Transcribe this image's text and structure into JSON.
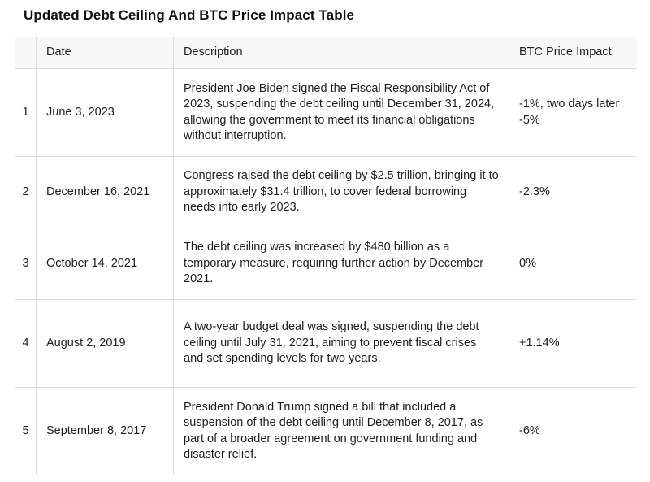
{
  "title": "Updated Debt Ceiling And BTC Price Impact Table",
  "table": {
    "headers": [
      "",
      "Date",
      "Description",
      "BTC Price Impact"
    ],
    "rows": [
      {
        "num": "1",
        "date": "June 3, 2023",
        "description": "President Joe Biden signed the Fiscal Responsibility Act of 2023, suspending the debt ceiling until December 31, 2024, allowing the government to meet its financial obligations without interruption.",
        "impact": [
          "-1%, two days later",
          "-5%"
        ]
      },
      {
        "num": "2",
        "date": "December 16, 2021",
        "description": "Congress raised the debt ceiling by $2.5 trillion, bringing it to approximately $31.4 trillion, to cover federal borrowing needs into early 2023.",
        "impact": [
          "-2.3%"
        ]
      },
      {
        "num": "3",
        "date": "October 14, 2021",
        "description": "The debt ceiling was increased by $480 billion as a temporary measure, requiring further action by December 2021.",
        "impact": [
          "0%"
        ]
      },
      {
        "num": "4",
        "date": "August 2, 2019",
        "description": "A two-year budget deal was signed, suspending the debt ceiling until July 31, 2021, aiming to prevent fiscal crises and set spending levels for two years.",
        "impact": [
          "+1.14%"
        ]
      },
      {
        "num": "5",
        "date": "September 8, 2017",
        "description": "President Donald Trump signed a bill that included a suspension of the debt ceiling until December 8, 2017, as part of a broader agreement on government funding and disaster relief.",
        "impact": [
          "-6%"
        ]
      }
    ]
  }
}
